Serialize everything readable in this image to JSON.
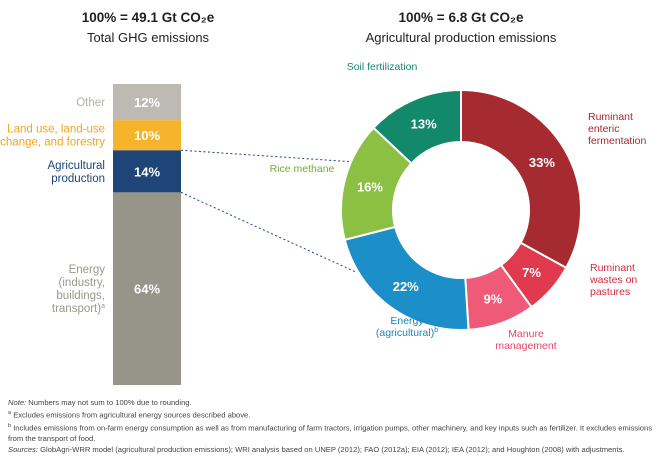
{
  "chart_data": [
    {
      "type": "bar",
      "stacked": true,
      "title": "100% = 49.1 Gt CO₂e",
      "subtitle": "Total GHG emissions",
      "unit": "%",
      "segments": [
        {
          "label": "Energy (industry, buildings, transport)",
          "label_lines": [
            "Energy",
            "(industry,",
            "buildings,",
            "transport)"
          ],
          "label_sup": "a",
          "value": 64,
          "value_label": "64%",
          "color": "#97948a",
          "label_color": "#9b978c"
        },
        {
          "label": "Agricultural production",
          "label_lines": [
            "Agricultural",
            "production"
          ],
          "value": 14,
          "value_label": "14%",
          "color": "#1f4477",
          "label_color": "#1f4477"
        },
        {
          "label": "Land use, land-use change, and forestry",
          "label_lines": [
            "Land use, land-use",
            "change, and forestry"
          ],
          "value": 10,
          "value_label": "10%",
          "color": "#f6b42d",
          "label_color": "#f2a51d"
        },
        {
          "label": "Other",
          "label_lines": [
            "Other"
          ],
          "value": 12,
          "value_label": "12%",
          "color": "#bcbab2",
          "label_color": "#b1aea6"
        }
      ]
    },
    {
      "type": "pie",
      "donut": true,
      "title": "100% = 6.8 Gt CO₂e",
      "subtitle": "Agricultural production emissions",
      "unit": "%",
      "slices": [
        {
          "label": "Ruminant enteric fermentation",
          "label_lines": [
            "Ruminant",
            "enteric",
            "fermentation"
          ],
          "value": 33,
          "value_label": "33%",
          "color": "#a52b30",
          "label_color": "#a52b30"
        },
        {
          "label": "Ruminant wastes on pastures",
          "label_lines": [
            "Ruminant",
            "wastes on",
            "pastures"
          ],
          "value": 7,
          "value_label": "7%",
          "color": "#e03a4e",
          "label_color": "#d8283f"
        },
        {
          "label": "Manure management",
          "label_lines": [
            "Manure",
            "management"
          ],
          "value": 9,
          "value_label": "9%",
          "color": "#ee5a77",
          "label_color": "#e8446a"
        },
        {
          "label": "Energy (agricultural)",
          "label_lines": [
            "Energy",
            "(agricultural)"
          ],
          "label_sup": "b",
          "value": 22,
          "value_label": "22%",
          "color": "#1d8fc8",
          "label_color": "#1b86bf"
        },
        {
          "label": "Rice methane",
          "label_lines": [
            "Rice methane"
          ],
          "value": 16,
          "value_label": "16%",
          "color": "#8cc043",
          "label_color": "#75ad2d"
        },
        {
          "label": "Soil fertilization",
          "label_lines": [
            "Soil fertilization"
          ],
          "value": 13,
          "value_label": "13%",
          "color": "#13896b",
          "label_color": "#13896b"
        }
      ]
    }
  ],
  "notes": {
    "note_label": "Note:",
    "note_text": "Numbers may not sum to 100% due to rounding.",
    "footnote_a_marker": "a",
    "footnote_a": "Excludes emissions from agricultural energy sources described above.",
    "footnote_b_marker": "b",
    "footnote_b": "Includes emissions from on-farm energy consumption as well as from manufacturing of farm tractors, irrigation pumps, other machinery, and key inputs such as fertilizer. It excludes emissions from the transport of food.",
    "sources_label": "Sources:",
    "sources_text": "GlobAgri-WRR model (agricultural production emissions); WRI analysis based on UNEP (2012); FAO (2012a); EIA (2012); IEA (2012); and Houghton (2008) with adjustments."
  }
}
